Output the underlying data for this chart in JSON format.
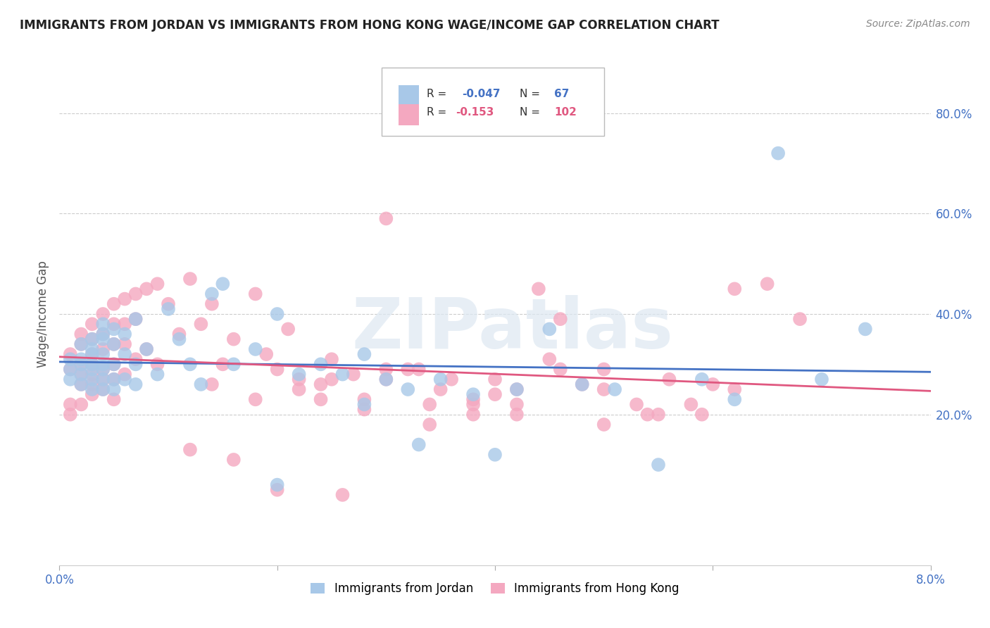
{
  "title": "IMMIGRANTS FROM JORDAN VS IMMIGRANTS FROM HONG KONG WAGE/INCOME GAP CORRELATION CHART",
  "source": "Source: ZipAtlas.com",
  "ylabel": "Wage/Income Gap",
  "watermark": "ZIPatlas",
  "legend_label1": "Immigrants from Jordan",
  "legend_label2": "Immigrants from Hong Kong",
  "color_jordan": "#A8C8E8",
  "color_hk": "#F4A8C0",
  "color_jordan_line": "#4472C4",
  "color_hk_line": "#E05880",
  "right_ytick_labels": [
    "80.0%",
    "60.0%",
    "40.0%",
    "20.0%"
  ],
  "right_ytick_values": [
    0.8,
    0.6,
    0.4,
    0.2
  ],
  "xlim": [
    0.0,
    0.08
  ],
  "ylim": [
    -0.1,
    0.9
  ],
  "jordan_x": [
    0.001,
    0.001,
    0.001,
    0.002,
    0.002,
    0.002,
    0.002,
    0.002,
    0.003,
    0.003,
    0.003,
    0.003,
    0.003,
    0.003,
    0.003,
    0.004,
    0.004,
    0.004,
    0.004,
    0.004,
    0.004,
    0.004,
    0.004,
    0.005,
    0.005,
    0.005,
    0.005,
    0.005,
    0.006,
    0.006,
    0.006,
    0.007,
    0.007,
    0.007,
    0.008,
    0.009,
    0.01,
    0.011,
    0.012,
    0.013,
    0.014,
    0.016,
    0.018,
    0.02,
    0.022,
    0.024,
    0.026,
    0.028,
    0.03,
    0.032,
    0.035,
    0.038,
    0.04,
    0.042,
    0.045,
    0.048,
    0.051,
    0.055,
    0.059,
    0.062,
    0.066,
    0.07,
    0.074,
    0.028,
    0.033,
    0.02,
    0.015
  ],
  "jordan_y": [
    0.31,
    0.29,
    0.27,
    0.34,
    0.31,
    0.28,
    0.26,
    0.3,
    0.35,
    0.32,
    0.29,
    0.27,
    0.25,
    0.33,
    0.3,
    0.38,
    0.35,
    0.32,
    0.29,
    0.27,
    0.25,
    0.36,
    0.3,
    0.37,
    0.34,
    0.3,
    0.27,
    0.25,
    0.36,
    0.32,
    0.27,
    0.39,
    0.3,
    0.26,
    0.33,
    0.28,
    0.41,
    0.35,
    0.3,
    0.26,
    0.44,
    0.3,
    0.33,
    0.4,
    0.28,
    0.3,
    0.28,
    0.32,
    0.27,
    0.25,
    0.27,
    0.24,
    0.12,
    0.25,
    0.37,
    0.26,
    0.25,
    0.1,
    0.27,
    0.23,
    0.72,
    0.27,
    0.37,
    0.22,
    0.14,
    0.06,
    0.46
  ],
  "hk_x": [
    0.001,
    0.001,
    0.001,
    0.001,
    0.002,
    0.002,
    0.002,
    0.002,
    0.002,
    0.002,
    0.003,
    0.003,
    0.003,
    0.003,
    0.003,
    0.003,
    0.003,
    0.004,
    0.004,
    0.004,
    0.004,
    0.004,
    0.004,
    0.005,
    0.005,
    0.005,
    0.005,
    0.005,
    0.005,
    0.006,
    0.006,
    0.006,
    0.006,
    0.007,
    0.007,
    0.007,
    0.008,
    0.008,
    0.009,
    0.009,
    0.01,
    0.011,
    0.012,
    0.013,
    0.014,
    0.015,
    0.016,
    0.018,
    0.019,
    0.02,
    0.021,
    0.022,
    0.024,
    0.025,
    0.027,
    0.028,
    0.03,
    0.032,
    0.034,
    0.036,
    0.038,
    0.04,
    0.042,
    0.044,
    0.046,
    0.048,
    0.05,
    0.053,
    0.056,
    0.059,
    0.062,
    0.065,
    0.068,
    0.03,
    0.025,
    0.035,
    0.04,
    0.045,
    0.05,
    0.055,
    0.06,
    0.038,
    0.042,
    0.02,
    0.024,
    0.028,
    0.033,
    0.016,
    0.012,
    0.014,
    0.018,
    0.022,
    0.026,
    0.03,
    0.034,
    0.038,
    0.042,
    0.046,
    0.05,
    0.054,
    0.058,
    0.062
  ],
  "hk_y": [
    0.22,
    0.29,
    0.32,
    0.2,
    0.34,
    0.3,
    0.26,
    0.28,
    0.36,
    0.22,
    0.38,
    0.35,
    0.3,
    0.28,
    0.26,
    0.32,
    0.24,
    0.4,
    0.36,
    0.33,
    0.29,
    0.27,
    0.25,
    0.42,
    0.38,
    0.34,
    0.3,
    0.27,
    0.23,
    0.43,
    0.38,
    0.34,
    0.28,
    0.44,
    0.39,
    0.31,
    0.45,
    0.33,
    0.46,
    0.3,
    0.42,
    0.36,
    0.47,
    0.38,
    0.42,
    0.3,
    0.35,
    0.44,
    0.32,
    0.29,
    0.37,
    0.25,
    0.26,
    0.31,
    0.28,
    0.23,
    0.27,
    0.29,
    0.22,
    0.27,
    0.23,
    0.24,
    0.22,
    0.45,
    0.39,
    0.26,
    0.25,
    0.22,
    0.27,
    0.2,
    0.45,
    0.46,
    0.39,
    0.59,
    0.27,
    0.25,
    0.27,
    0.31,
    0.18,
    0.2,
    0.26,
    0.2,
    0.25,
    0.05,
    0.23,
    0.21,
    0.29,
    0.11,
    0.13,
    0.26,
    0.23,
    0.27,
    0.04,
    0.29,
    0.18,
    0.22,
    0.2,
    0.29,
    0.29,
    0.2,
    0.22,
    0.25
  ]
}
